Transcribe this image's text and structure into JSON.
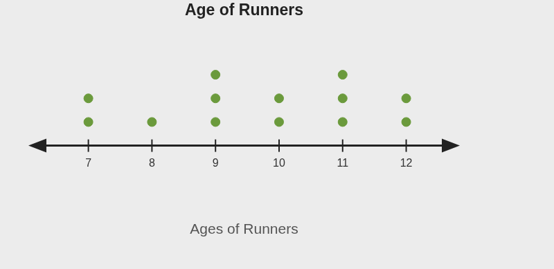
{
  "chart_data": {
    "type": "dot",
    "title": "Age of Runners",
    "x_label": "Ages of Runners",
    "x": [
      7,
      8,
      9,
      10,
      11,
      12
    ],
    "values": [
      2,
      1,
      3,
      2,
      3,
      2
    ],
    "xlim": [
      6.1,
      12.8
    ],
    "xticks": [
      7,
      8,
      9,
      10,
      11,
      12
    ],
    "color": "#6b9a3c",
    "marker": "circle",
    "tick_labels": "x",
    "grid": false
  }
}
